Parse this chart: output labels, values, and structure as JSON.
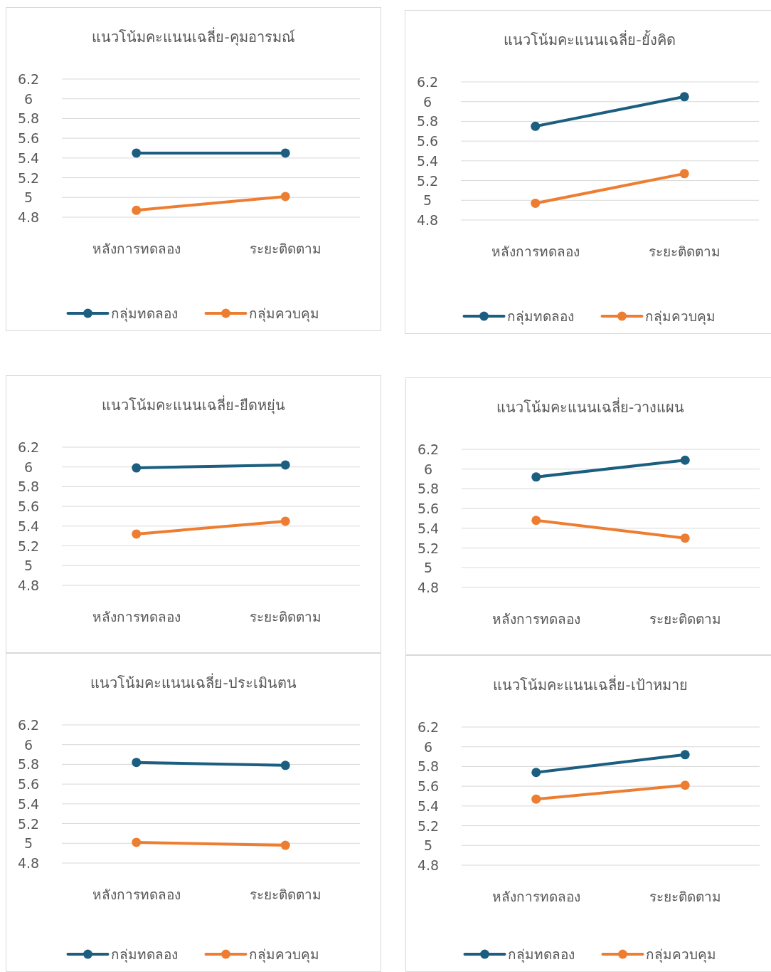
{
  "chart_data": [
    {
      "type": "line",
      "title": "แนวโน้มคะแนนเฉลี่ย-คุมอารมณ์",
      "categories": [
        "หลังการทดลอง",
        "ระยะติดตาม"
      ],
      "ylim": [
        4.8,
        6.2
      ],
      "yticks": [
        4.8,
        5,
        5.2,
        5.4,
        5.6,
        5.8,
        6,
        6.2
      ],
      "grid": "y",
      "legend": "bottom",
      "marker": "circle",
      "series": [
        {
          "name": "กลุ่มทดลอง",
          "color": "#1b5e80",
          "values": [
            5.45,
            5.45
          ]
        },
        {
          "name": "กลุ่มควบคุม",
          "color": "#ed7d31",
          "values": [
            4.87,
            5.01
          ]
        }
      ]
    },
    {
      "type": "line",
      "title": "แนวโน้มคะแนนเฉลี่ย-ยั้งคิด",
      "categories": [
        "หลังการทดลอง",
        "ระยะติดตาม"
      ],
      "ylim": [
        4.8,
        6.2
      ],
      "yticks": [
        4.8,
        5,
        5.2,
        5.4,
        5.6,
        5.8,
        6,
        6.2
      ],
      "grid": "y",
      "legend": "bottom",
      "marker": "circle",
      "series": [
        {
          "name": "กลุ่มทดลอง",
          "color": "#1b5e80",
          "values": [
            5.75,
            6.05
          ]
        },
        {
          "name": "กลุ่มควบคุม",
          "color": "#ed7d31",
          "values": [
            4.97,
            5.27
          ]
        }
      ]
    },
    {
      "type": "line",
      "title": "แนวโน้มคะแนนเฉลี่ย-ยืดหยุ่น",
      "categories": [
        "หลังการทดลอง",
        "ระยะติดตาม"
      ],
      "ylim": [
        4.8,
        6.2
      ],
      "yticks": [
        4.8,
        5,
        5.2,
        5.4,
        5.6,
        5.8,
        6,
        6.2
      ],
      "grid": "y",
      "marker": "circle",
      "series": [
        {
          "color": "#1b5e80",
          "values": [
            5.99,
            6.02
          ]
        },
        {
          "color": "#ed7d31",
          "values": [
            5.32,
            5.45
          ]
        }
      ]
    },
    {
      "type": "line",
      "title": "แนวโน้มคะแนนเฉลี่ย-วางแผน",
      "categories": [
        "หลังการทดลอง",
        "ระยะติดตาม"
      ],
      "ylim": [
        4.8,
        6.2
      ],
      "yticks": [
        4.8,
        5,
        5.2,
        5.4,
        5.6,
        5.8,
        6,
        6.2
      ],
      "grid": "y",
      "marker": "circle",
      "series": [
        {
          "color": "#1b5e80",
          "values": [
            5.92,
            6.09
          ]
        },
        {
          "color": "#ed7d31",
          "values": [
            5.48,
            5.3
          ]
        }
      ]
    },
    {
      "type": "line",
      "title": "แนวโน้มคะแนนเฉลี่ย-ประเมินตน",
      "categories": [
        "หลังการทดลอง",
        "ระยะติดตาม"
      ],
      "ylim": [
        4.8,
        6.2
      ],
      "yticks": [
        4.8,
        5,
        5.2,
        5.4,
        5.6,
        5.8,
        6,
        6.2
      ],
      "grid": "y",
      "legend": "bottom",
      "marker": "circle",
      "series": [
        {
          "name": "กลุ่มทดลอง",
          "color": "#1b5e80",
          "values": [
            5.82,
            5.79
          ]
        },
        {
          "name": "กลุ่มควบคุม",
          "color": "#ed7d31",
          "values": [
            5.01,
            4.98
          ]
        }
      ]
    },
    {
      "type": "line",
      "title": "แนวโน้มคะแนนเฉลี่ย-เป้าหมาย",
      "categories": [
        "หลังการทดลอง",
        "ระยะติดตาม"
      ],
      "ylim": [
        4.8,
        6.2
      ],
      "yticks": [
        4.8,
        5,
        5.2,
        5.4,
        5.6,
        5.8,
        6,
        6.2
      ],
      "grid": "y",
      "legend": "bottom",
      "marker": "circle",
      "series": [
        {
          "name": "กลุ่มทดลอง",
          "color": "#1b5e80",
          "values": [
            5.74,
            5.92
          ]
        },
        {
          "name": "กลุ่มควบคุม",
          "color": "#ed7d31",
          "values": [
            5.47,
            5.61
          ]
        }
      ]
    }
  ]
}
